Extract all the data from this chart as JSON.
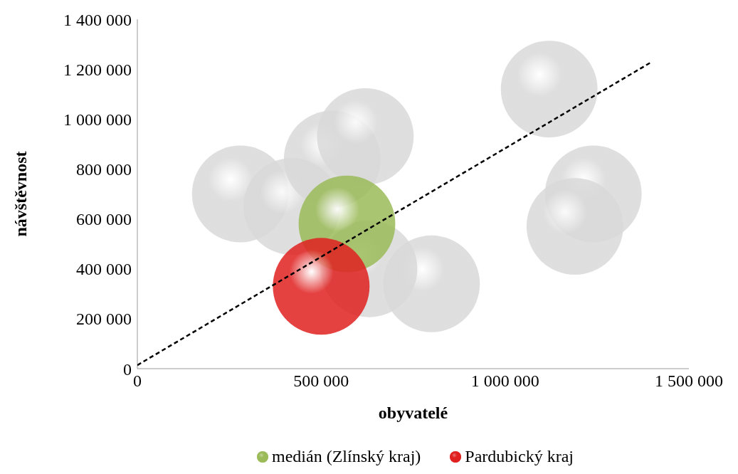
{
  "chart_data": {
    "type": "bubble",
    "xlabel": "obyvatelé",
    "ylabel": "návštěvnost",
    "xlim": [
      0,
      1500000
    ],
    "xticks": [
      0,
      {
        "value": 500000,
        "label": "500 000"
      },
      {
        "value": 1000000,
        "label": "1 000 000"
      },
      {
        "value": 1500000,
        "label": "1 500 000"
      }
    ],
    "ylim": [
      0,
      1400000
    ],
    "yticks": [
      0,
      {
        "value": 200000,
        "label": "200 000"
      },
      {
        "value": 400000,
        "label": "400 000"
      },
      {
        "value": 600000,
        "label": "600 000"
      },
      {
        "value": 800000,
        "label": "800 000"
      },
      {
        "value": 1000000,
        "label": "1 000 000"
      },
      {
        "value": 1200000,
        "label": "1 200 000"
      },
      {
        "value": 1400000,
        "label": "1 400 000"
      }
    ],
    "grid": false,
    "legend": "bottom",
    "series": [
      {
        "color": "#d9d9d9",
        "x": [
          280000,
          420000,
          530000,
          620000,
          1120000,
          1240000,
          1190000,
          800000,
          630000
        ],
        "values": [
          700000,
          650000,
          840000,
          930000,
          1120000,
          700000,
          570000,
          340000,
          400000
        ],
        "sizes": [
          1,
          1,
          1,
          1,
          1,
          1,
          1,
          1,
          1
        ]
      },
      {
        "name": "medián (Zlínský kraj)",
        "color": "#9bbb59",
        "x": [
          570000
        ],
        "values": [
          580000
        ],
        "sizes": [
          1
        ]
      },
      {
        "name": "Pardubický kraj",
        "color": "#e02020",
        "x": [
          500000
        ],
        "values": [
          330000
        ],
        "sizes": [
          1
        ]
      },
      {
        "type": "line",
        "color": "#000000",
        "line_style": "dashed",
        "marker": "none",
        "x": [
          0,
          1400000
        ],
        "values": [
          14000,
          1230000
        ]
      }
    ]
  }
}
